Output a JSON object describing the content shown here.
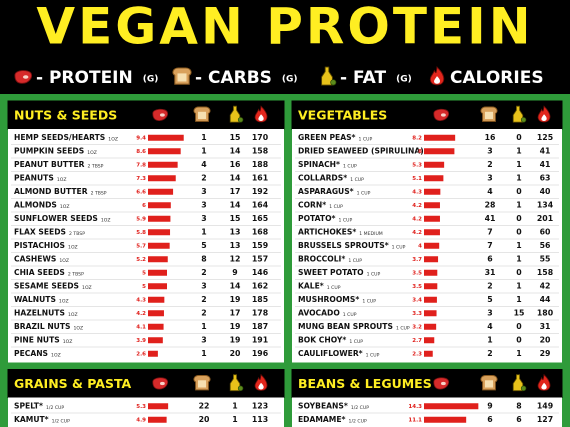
{
  "header": {
    "title": "VEGAN PROTEIN"
  },
  "legend": [
    {
      "label": "- PROTEIN",
      "unit": "(G)"
    },
    {
      "label": "- CARBS",
      "unit": "(G)"
    },
    {
      "label": "- FAT",
      "unit": "(G)"
    },
    {
      "label": "CALORIES"
    }
  ],
  "sections": [
    {
      "title": "NUTS & SEEDS",
      "rows": [
        {
          "name": "HEMP SEEDS/HEARTS",
          "serving": "1OZ",
          "protein": 9.4,
          "carbs": 1,
          "fat": 15,
          "calories": 170
        },
        {
          "name": "PUMPKIN SEEDS",
          "serving": "1OZ",
          "protein": 8.6,
          "carbs": 1,
          "fat": 14,
          "calories": 158
        },
        {
          "name": "PEANUT BUTTER",
          "serving": "2 TBSP",
          "protein": 7.8,
          "carbs": 4,
          "fat": 16,
          "calories": 188
        },
        {
          "name": "PEANUTS",
          "serving": "1OZ",
          "protein": 7.3,
          "carbs": 2,
          "fat": 14,
          "calories": 161
        },
        {
          "name": "ALMOND BUTTER",
          "serving": "2 TBSP",
          "protein": 6.6,
          "carbs": 3,
          "fat": 17,
          "calories": 192
        },
        {
          "name": "ALMONDS",
          "serving": "1OZ",
          "protein": 6,
          "carbs": 3,
          "fat": 14,
          "calories": 164
        },
        {
          "name": "SUNFLOWER SEEDS",
          "serving": "1OZ",
          "protein": 5.9,
          "carbs": 3,
          "fat": 15,
          "calories": 165
        },
        {
          "name": "FLAX SEEDS",
          "serving": "2 TBSP",
          "protein": 5.8,
          "carbs": 1,
          "fat": 13,
          "calories": 168
        },
        {
          "name": "PISTACHIOS",
          "serving": "1OZ",
          "protein": 5.7,
          "carbs": 5,
          "fat": 13,
          "calories": 159
        },
        {
          "name": "CASHEWS",
          "serving": "1OZ",
          "protein": 5.2,
          "carbs": 8,
          "fat": 12,
          "calories": 157
        },
        {
          "name": "CHIA SEEDS",
          "serving": "2 TBSP",
          "protein": 5,
          "carbs": 2,
          "fat": 9,
          "calories": 146
        },
        {
          "name": "SESAME SEEDS",
          "serving": "1OZ",
          "protein": 5,
          "carbs": 3,
          "fat": 14,
          "calories": 162
        },
        {
          "name": "WALNUTS",
          "serving": "1OZ",
          "protein": 4.3,
          "carbs": 2,
          "fat": 19,
          "calories": 185
        },
        {
          "name": "HAZELNUTS",
          "serving": "1OZ",
          "protein": 4.2,
          "carbs": 2,
          "fat": 17,
          "calories": 178
        },
        {
          "name": "BRAZIL NUTS",
          "serving": "1OZ",
          "protein": 4.1,
          "carbs": 1,
          "fat": 19,
          "calories": 187
        },
        {
          "name": "PINE NUTS",
          "serving": "1OZ",
          "protein": 3.9,
          "carbs": 3,
          "fat": 19,
          "calories": 191
        },
        {
          "name": "PECANS",
          "serving": "1OZ",
          "protein": 2.6,
          "carbs": 1,
          "fat": 20,
          "calories": 196
        }
      ]
    },
    {
      "title": "GRAINS & PASTA",
      "rows": [
        {
          "name": "SPELT*",
          "serving": "1/2 CUP",
          "protein": 5.3,
          "carbs": 22,
          "fat": 1,
          "calories": 123
        },
        {
          "name": "KAMUT*",
          "serving": "1/2 CUP",
          "protein": 4.9,
          "carbs": 20,
          "fat": 1,
          "calories": 113
        }
      ]
    },
    {
      "title": "VEGETABLES",
      "rows": [
        {
          "name": "GREEN PEAS*",
          "serving": "1 CUP",
          "protein": 8.2,
          "carbs": 16,
          "fat": 0,
          "calories": 125
        },
        {
          "name": "DRIED SEAWEED (SPIRULINA)",
          "serving": "2 TBSP",
          "protein": 8,
          "carbs": 3,
          "fat": 1,
          "calories": 41
        },
        {
          "name": "SPINACH*",
          "serving": "1 CUP",
          "protein": 5.3,
          "carbs": 2,
          "fat": 1,
          "calories": 41
        },
        {
          "name": "COLLARDS*",
          "serving": "1 CUP",
          "protein": 5.1,
          "carbs": 3,
          "fat": 1,
          "calories": 63
        },
        {
          "name": "ASPARAGUS*",
          "serving": "1 CUP",
          "protein": 4.3,
          "carbs": 4,
          "fat": 0,
          "calories": 40
        },
        {
          "name": "CORN*",
          "serving": "1 CUP",
          "protein": 4.2,
          "carbs": 28,
          "fat": 1,
          "calories": 134
        },
        {
          "name": "POTATO*",
          "serving": "1 CUP",
          "protein": 4.2,
          "carbs": 41,
          "fat": 0,
          "calories": 201
        },
        {
          "name": "ARTICHOKES*",
          "serving": "1 MEDIUM",
          "protein": 4.2,
          "carbs": 7,
          "fat": 0,
          "calories": 60
        },
        {
          "name": "BRUSSELS SPROUTS*",
          "serving": "1 CUP",
          "protein": 4,
          "carbs": 7,
          "fat": 1,
          "calories": 56
        },
        {
          "name": "BROCCOLI*",
          "serving": "1 CUP",
          "protein": 3.7,
          "carbs": 6,
          "fat": 1,
          "calories": 55
        },
        {
          "name": "SWEET POTATO",
          "serving": "1 CUP",
          "protein": 3.5,
          "carbs": 31,
          "fat": 0,
          "calories": 158
        },
        {
          "name": "KALE*",
          "serving": "1 CUP",
          "protein": 3.5,
          "carbs": 2,
          "fat": 1,
          "calories": 42
        },
        {
          "name": "MUSHROOMS*",
          "serving": "1 CUP",
          "protein": 3.4,
          "carbs": 5,
          "fat": 1,
          "calories": 44
        },
        {
          "name": "AVOCADO",
          "serving": "1 CUP",
          "protein": 3.3,
          "carbs": 3,
          "fat": 15,
          "calories": 180
        },
        {
          "name": "MUNG BEAN SPROUTS",
          "serving": "1 CUP",
          "protein": 3.2,
          "carbs": 4,
          "fat": 0,
          "calories": 31
        },
        {
          "name": "BOK CHOY*",
          "serving": "1 CUP",
          "protein": 2.7,
          "carbs": 1,
          "fat": 0,
          "calories": 20
        },
        {
          "name": "CAULIFLOWER*",
          "serving": "1 CUP",
          "protein": 2.3,
          "carbs": 2,
          "fat": 1,
          "calories": 29
        }
      ]
    },
    {
      "title": "BEANS & LEGUMES",
      "rows": [
        {
          "name": "SOYBEANS*",
          "serving": "1/2 CUP",
          "protein": 14.3,
          "carbs": 9,
          "fat": 8,
          "calories": 149
        },
        {
          "name": "EDAMAME*",
          "serving": "1/2 CUP",
          "protein": 11.1,
          "carbs": 6,
          "fat": 6,
          "calories": 127
        }
      ]
    }
  ]
}
